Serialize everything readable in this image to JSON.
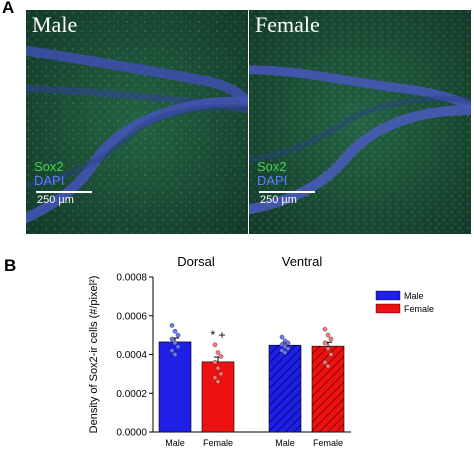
{
  "panel_labels": {
    "a": "A",
    "b": "B"
  },
  "micrographs": [
    {
      "title": "Male",
      "stain_1": "Sox2",
      "stain_2": "DAPI",
      "scale_text": "250 µm"
    },
    {
      "title": "Female",
      "stain_1": "Sox2",
      "stain_2": "DAPI",
      "scale_text": "250 µm"
    }
  ],
  "colors": {
    "male": "#1f1fe6",
    "female": "#ee1111",
    "sox2": "#4cd14c",
    "dapi": "#5b7cff",
    "tissue": "#1f5a3a"
  },
  "chart_data": {
    "type": "bar",
    "ylabel": "Density of Sox2-ir cells (#/pixel²)",
    "ylim": [
      0,
      0.0008
    ],
    "yticks": [
      "0.0000",
      "0.0002",
      "0.0004",
      "0.0006",
      "0.0008"
    ],
    "groups": [
      "Dorsal",
      "Ventral"
    ],
    "categories": [
      "Male",
      "Female",
      "Male",
      "Female"
    ],
    "series": [
      {
        "name": "Male",
        "group": "Dorsal",
        "value": 0.000465,
        "sem": 2e-05,
        "hatched": false,
        "points": [
          0.00055,
          0.00052,
          0.0005,
          0.00048,
          0.00046,
          0.00044,
          0.00042,
          0.0004
        ]
      },
      {
        "name": "Female",
        "group": "Dorsal",
        "value": 0.000362,
        "sem": 2.5e-05,
        "hatched": false,
        "points": [
          0.00045,
          0.00041,
          0.00039,
          0.00036,
          0.00033,
          0.0003,
          0.00028,
          0.00026
        ]
      },
      {
        "name": "Male",
        "group": "Ventral",
        "value": 0.000448,
        "sem": 1.2e-05,
        "hatched": true,
        "points": [
          0.00049,
          0.00047,
          0.00046,
          0.00045,
          0.00044,
          0.00043,
          0.00042,
          0.00041
        ]
      },
      {
        "name": "Female",
        "group": "Ventral",
        "value": 0.000443,
        "sem": 2e-05,
        "hatched": true,
        "points": [
          0.00053,
          0.0005,
          0.00048,
          0.00046,
          0.00043,
          0.0004,
          0.00036,
          0.00034
        ]
      }
    ],
    "annotation": "* +",
    "legend": {
      "placement": "top-right",
      "entries": [
        "Male",
        "Female"
      ]
    }
  }
}
